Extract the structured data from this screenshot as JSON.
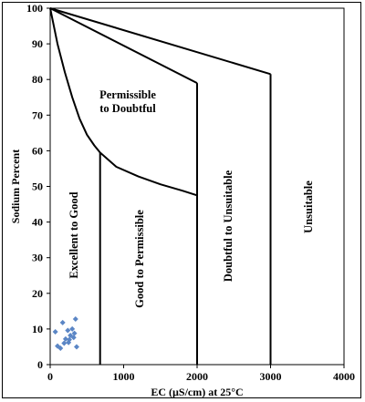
{
  "chart_data": {
    "type": "scatter",
    "title": "",
    "xlabel": "EC (µS/cm) at 25°C",
    "ylabel": "Sodium Percent",
    "xlim": [
      0,
      4000
    ],
    "ylim": [
      0,
      100
    ],
    "x_ticks": [
      "0",
      "1000",
      "2000",
      "3000",
      "4000"
    ],
    "y_ticks": [
      "0",
      "10",
      "20",
      "30",
      "40",
      "50",
      "60",
      "70",
      "80",
      "90",
      "100"
    ],
    "grid": false,
    "legend": "none",
    "marker_color": "#5b86c5",
    "points": [
      {
        "x": 70,
        "y": 9.2
      },
      {
        "x": 100,
        "y": 5.2
      },
      {
        "x": 140,
        "y": 4.6
      },
      {
        "x": 170,
        "y": 11.8
      },
      {
        "x": 190,
        "y": 6.0
      },
      {
        "x": 210,
        "y": 7.2
      },
      {
        "x": 240,
        "y": 9.6
      },
      {
        "x": 250,
        "y": 6.2
      },
      {
        "x": 260,
        "y": 7.0
      },
      {
        "x": 275,
        "y": 8.2
      },
      {
        "x": 300,
        "y": 10.0
      },
      {
        "x": 320,
        "y": 7.6
      },
      {
        "x": 330,
        "y": 8.8
      },
      {
        "x": 345,
        "y": 12.8
      },
      {
        "x": 360,
        "y": 5.0
      }
    ],
    "boundaries": [
      {
        "name": "excellent-good-curve",
        "x": [
          0,
          100,
          200,
          300,
          400,
          500,
          600,
          680
        ],
        "y": [
          100,
          90,
          82,
          75,
          69,
          64.5,
          61.5,
          59.5
        ]
      },
      {
        "name": "excellent-good-vertical",
        "x": [
          680,
          680
        ],
        "y": [
          59.5,
          0
        ]
      },
      {
        "name": "good-permissible-curve",
        "x": [
          680,
          900,
          1200,
          1500,
          1800,
          2000
        ],
        "y": [
          59.5,
          55.5,
          52.8,
          50.6,
          48.8,
          47.5
        ]
      },
      {
        "name": "permissible-doubtful-line",
        "x": [
          0,
          2000
        ],
        "y": [
          100,
          79
        ]
      },
      {
        "name": "good-doubtful-vertical",
        "x": [
          2000,
          2000
        ],
        "y": [
          79,
          0
        ]
      },
      {
        "name": "doubtful-unsuitable-line",
        "x": [
          0,
          3000
        ],
        "y": [
          100,
          81.5
        ]
      },
      {
        "name": "doubtful-unsuitable-vertical",
        "x": [
          3000,
          3000
        ],
        "y": [
          81.5,
          0
        ]
      }
    ],
    "regions": {
      "excellent": "Excellent to Good",
      "good": "Good to Permissible",
      "permissible_line1": "Permissible",
      "permissible_line2": "to Doubtful",
      "doubtful": "Doubtful to Unsuitable",
      "unsuitable": "Unsuitable"
    }
  }
}
